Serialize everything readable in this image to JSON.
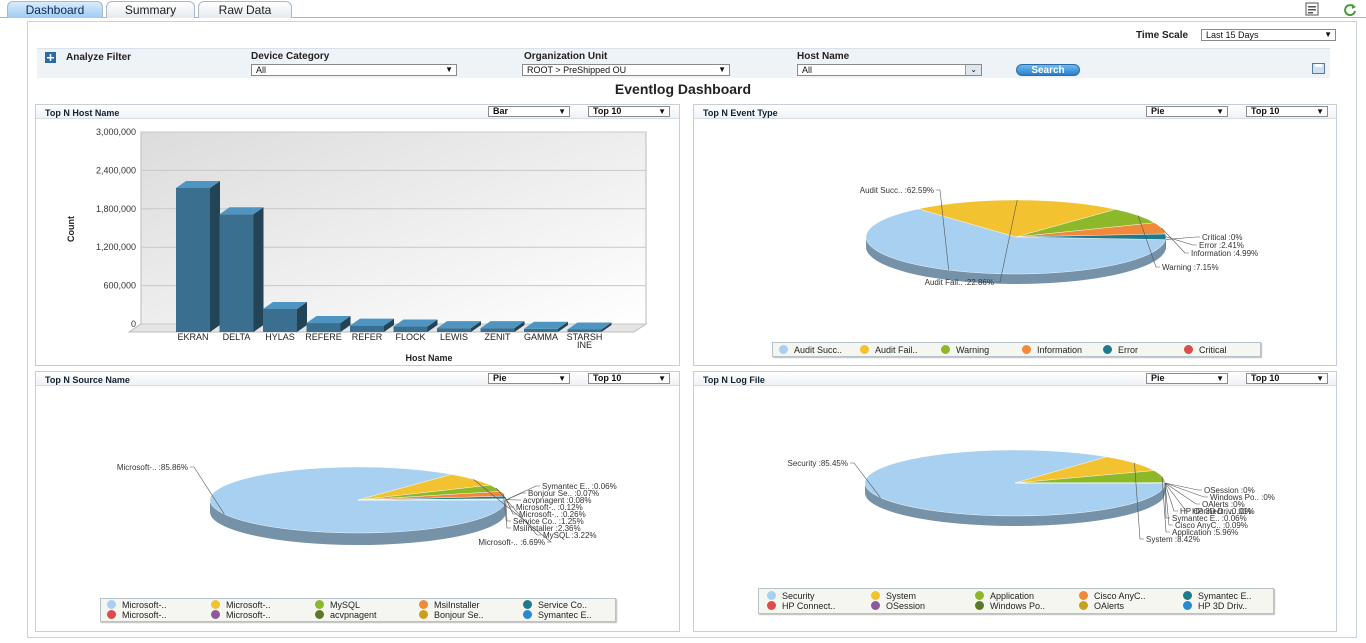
{
  "tabs": [
    {
      "label": "Dashboard",
      "active": true
    },
    {
      "label": "Summary",
      "active": false
    },
    {
      "label": "Raw Data",
      "active": false
    }
  ],
  "header": {
    "time_scale_label": "Time Scale",
    "time_scale_value": "Last 15 Days",
    "title": "Eventlog Dashboard"
  },
  "filter": {
    "analyze_label": "Analyze Filter",
    "device_category_label": "Device Category",
    "device_category_value": "All",
    "org_unit_label": "Organization Unit",
    "org_unit_value": "ROOT > PreShipped OU",
    "host_name_label": "Host Name",
    "host_name_value": "All",
    "search_label": "Search"
  },
  "panels": {
    "host": {
      "title": "Top N Host Name",
      "type": "Bar",
      "topn": "Top 10"
    },
    "event": {
      "title": "Top N Event Type",
      "type": "Pie",
      "topn": "Top 10"
    },
    "source": {
      "title": "Top N Source Name",
      "type": "Pie",
      "topn": "Top 10"
    },
    "logfile": {
      "title": "Top N Log File",
      "type": "Pie",
      "topn": "Top 10"
    }
  },
  "chart_data": [
    {
      "type": "bar",
      "title": "Top N Host Name",
      "xlabel": "Host Name",
      "ylabel": "Count",
      "ylim": [
        0,
        3000000
      ],
      "yticks": [
        "0",
        "600,000",
        "1,200,000",
        "1,800,000",
        "2,400,000",
        "3,000,000"
      ],
      "categories": [
        "EKRAN",
        "DELTA",
        "HYLAS",
        "REFERE",
        "REFER",
        "FLOCK",
        "LEWIS",
        "ZENIT",
        "GAMMA",
        "STARSH INE"
      ],
      "values": [
        2250000,
        1840000,
        360000,
        140000,
        100000,
        85000,
        60000,
        60000,
        50000,
        40000
      ],
      "color": "#3a6f8f"
    },
    {
      "type": "pie",
      "title": "Top N Event Type",
      "labels": [
        "Audit Succ..",
        "Audit Fail..",
        "Warning",
        "Information",
        "Error",
        "Critical"
      ],
      "values": [
        62.59,
        22.86,
        7.15,
        4.99,
        2.41,
        0
      ],
      "data_labels": [
        "Audit Succ.. :62.59%",
        "Audit Fail.. :22.86%",
        "Warning :7.15%",
        "Information :4.99%",
        "Error :2.41%",
        "Critical :0%"
      ],
      "colors": [
        "#a8d0f0",
        "#f2c230",
        "#8cb82a",
        "#f08a3a",
        "#1f7a8c",
        "#d94d4d"
      ],
      "legend": [
        "Audit Succ..",
        "Audit Fail..",
        "Warning",
        "Information",
        "Error",
        "Critical"
      ]
    },
    {
      "type": "pie",
      "title": "Top N Source Name",
      "labels": [
        "Microsoft-..",
        "Microsoft-..",
        "MySQL",
        "MsiInstaller",
        "Service Co..",
        "Microsoft-..",
        "Microsoft-..",
        "acvpnagent",
        "Bonjour Se..",
        "Symantec E.."
      ],
      "values": [
        85.86,
        6.69,
        3.22,
        2.36,
        1.25,
        0.26,
        0.12,
        0.08,
        0.07,
        0.06
      ],
      "data_labels": [
        "Microsoft-.. :85.86%",
        "Microsoft-.. :6.69%",
        "MySQL :3.22%",
        "MsiInstaller :2.36%",
        "Service Co.. :1.25%",
        "Microsoft-.. :0.26%",
        "Microsoft-.. :0.12%",
        "acvpnagent :0.08%",
        "Bonjour Se.. :0.07%",
        "Symantec E.. :0.06%"
      ],
      "colors": [
        "#a8d0f0",
        "#f2c230",
        "#8cb82a",
        "#f08a3a",
        "#1f7a8c",
        "#d94d4d",
        "#8a5a9a",
        "#5a7a2a",
        "#c8a020",
        "#2a8ad0"
      ],
      "legend": [
        "Microsoft-..",
        "Microsoft-..",
        "MySQL",
        "MsiInstaller",
        "Service Co..",
        "Microsoft-..",
        "Microsoft-..",
        "acvpnagent",
        "Bonjour Se..",
        "Symantec E.."
      ]
    },
    {
      "type": "pie",
      "title": "Top N Log File",
      "labels": [
        "Security",
        "System",
        "Application",
        "Cisco AnyC..",
        "Symantec E..",
        "HP Connect..",
        "OSession",
        "Windows Po..",
        "OAlerts",
        "HP 3D Driv.."
      ],
      "values": [
        85.45,
        8.42,
        5.96,
        0.09,
        0.06,
        0.01,
        0,
        0,
        0,
        0
      ],
      "data_labels": [
        "Security :85.45%",
        "System :8.42%",
        "Application :5.96%",
        "Cisco AnyC.. :0.09%",
        "Symantec E.. :0.06%",
        "HP Connect.. :0.01%",
        "OSession :0%",
        "Windows Po.. :0%",
        "OAlerts :0%",
        "HP 3D Driv.. :0%"
      ],
      "colors": [
        "#a8d0f0",
        "#f2c230",
        "#8cb82a",
        "#f08a3a",
        "#1f7a8c",
        "#d94d4d",
        "#8a5a9a",
        "#5a7a2a",
        "#c8a020",
        "#2a8ad0"
      ],
      "legend": [
        "Security",
        "System",
        "Application",
        "Cisco AnyC..",
        "Symantec E..",
        "HP Connect..",
        "OSession",
        "Windows Po..",
        "OAlerts",
        "HP 3D Driv.."
      ]
    }
  ]
}
